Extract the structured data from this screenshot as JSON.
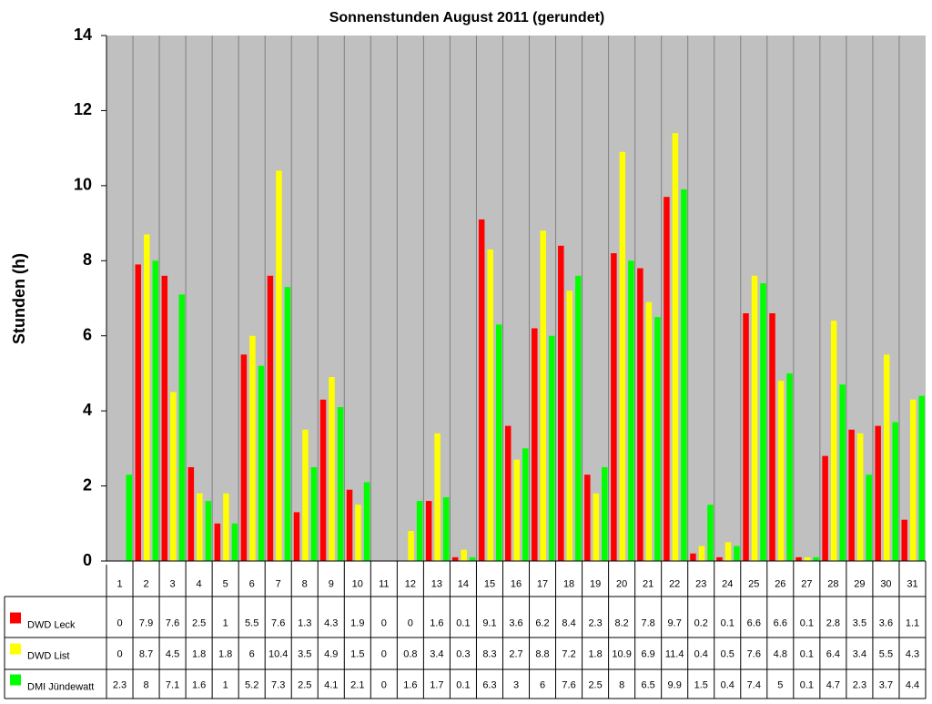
{
  "chart_data": {
    "type": "bar",
    "title": "Sonnenstunden August 2011 (gerundet)",
    "y_label": "Stunden (h)",
    "categories": [
      "1",
      "2",
      "3",
      "4",
      "5",
      "6",
      "7",
      "8",
      "9",
      "10",
      "11",
      "12",
      "13",
      "14",
      "15",
      "16",
      "17",
      "18",
      "19",
      "20",
      "21",
      "22",
      "23",
      "24",
      "25",
      "26",
      "27",
      "28",
      "29",
      "30",
      "31"
    ],
    "series": [
      {
        "name": "DWD Leck",
        "color": "#ff0000",
        "values": [
          0,
          7.9,
          7.6,
          2.5,
          1,
          5.5,
          7.6,
          1.3,
          4.3,
          1.9,
          0,
          0,
          1.6,
          0.1,
          9.1,
          3.6,
          6.2,
          8.4,
          2.3,
          8.2,
          7.8,
          9.7,
          0.2,
          0.1,
          6.6,
          6.6,
          0.1,
          2.8,
          3.5,
          3.6,
          1.1
        ]
      },
      {
        "name": "DWD List",
        "color": "#ffff00",
        "values": [
          0,
          8.7,
          4.5,
          1.8,
          1.8,
          6,
          10.4,
          3.5,
          4.9,
          1.5,
          0,
          0.8,
          3.4,
          0.3,
          8.3,
          2.7,
          8.8,
          7.2,
          1.8,
          10.9,
          6.9,
          11.4,
          0.4,
          0.5,
          7.6,
          4.8,
          0.1,
          6.4,
          3.4,
          5.5,
          4.3
        ]
      },
      {
        "name": "DMI Jündewatt",
        "color": "#00ff00",
        "values": [
          2.3,
          8,
          7.1,
          1.6,
          1,
          5.2,
          7.3,
          2.5,
          4.1,
          2.1,
          0,
          1.6,
          1.7,
          0.1,
          6.3,
          3,
          6,
          7.6,
          2.5,
          8,
          6.5,
          9.9,
          1.5,
          0.4,
          7.4,
          5,
          0.1,
          4.7,
          2.3,
          3.7,
          4.4
        ]
      }
    ],
    "ylim": [
      0,
      14
    ],
    "yticks": [
      0,
      2,
      4,
      6,
      8,
      10,
      12,
      14
    ]
  }
}
